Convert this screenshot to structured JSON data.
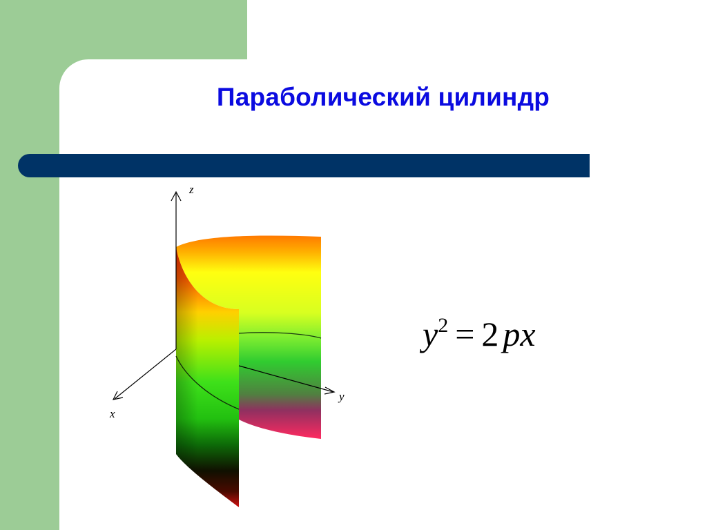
{
  "slide": {
    "title": "Параболический цилиндр",
    "colors": {
      "background_green": "#9ccc96",
      "panel_white": "#ffffff",
      "title_blue": "#0b0be0",
      "bar_navy": "#003366"
    }
  },
  "figure": {
    "axis_z": "z",
    "axis_y": "y",
    "axis_x": "x"
  },
  "formula": {
    "lhs_var": "y",
    "lhs_exp": "2",
    "eq": "=",
    "coef": "2",
    "rhs_var1": "p",
    "rhs_var2": "x"
  }
}
